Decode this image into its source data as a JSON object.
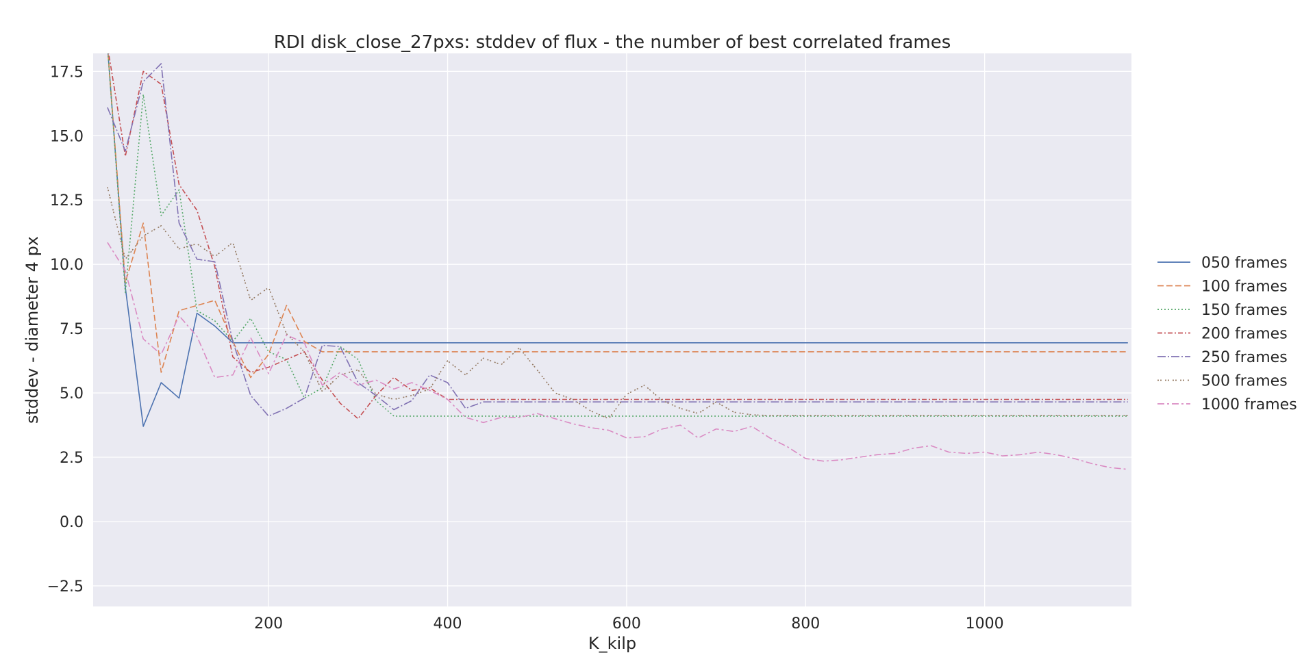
{
  "chart_data": {
    "type": "line",
    "title": "RDI disk_close_27pxs: stddev of flux - the number of best correlated frames",
    "xlabel": "K_kilp",
    "ylabel": "stddev - diameter 4 px",
    "xlim": [
      4,
      1164
    ],
    "ylim": [
      -3.3,
      18.2
    ],
    "xticks": [
      200,
      400,
      600,
      800,
      1000
    ],
    "yticks": [
      -2.5,
      0.0,
      2.5,
      5.0,
      7.5,
      10.0,
      12.5,
      15.0,
      17.5
    ],
    "grid": true,
    "legend_position": "right",
    "background": "#eaeaf2",
    "series": [
      {
        "name": "050 frames",
        "color": "#4c72b0",
        "dash": "",
        "x": [
          20,
          40,
          60,
          80,
          100,
          120,
          140,
          160,
          180,
          1160
        ],
        "y": [
          18.5,
          9.1,
          3.7,
          5.4,
          4.8,
          8.1,
          7.6,
          6.95,
          6.95,
          6.95
        ]
      },
      {
        "name": "100 frames",
        "color": "#dd8452",
        "dash": "9,4",
        "x": [
          20,
          40,
          60,
          80,
          100,
          120,
          140,
          160,
          180,
          200,
          220,
          240,
          260,
          280,
          1160
        ],
        "y": [
          18.5,
          9.3,
          11.6,
          5.8,
          8.2,
          8.4,
          8.6,
          7.0,
          5.6,
          6.5,
          8.4,
          7.0,
          6.6,
          6.6,
          6.6
        ]
      },
      {
        "name": "150 frames",
        "color": "#55a868",
        "dash": "2,3",
        "x": [
          20,
          40,
          60,
          80,
          100,
          120,
          140,
          160,
          180,
          200,
          220,
          240,
          260,
          280,
          300,
          320,
          340,
          1160
        ],
        "y": [
          18.5,
          8.9,
          16.6,
          11.9,
          12.9,
          8.2,
          7.8,
          7.0,
          7.9,
          6.6,
          6.3,
          4.8,
          5.2,
          6.8,
          6.3,
          4.7,
          4.1,
          4.1
        ]
      },
      {
        "name": "200 frames",
        "color": "#c44e52",
        "dash": "7,3,2,3",
        "x": [
          20,
          40,
          60,
          80,
          100,
          120,
          140,
          160,
          180,
          200,
          220,
          240,
          260,
          280,
          300,
          320,
          340,
          360,
          380,
          400,
          1160
        ],
        "y": [
          18.5,
          14.2,
          17.5,
          17.0,
          13.1,
          12.1,
          9.9,
          6.4,
          5.8,
          6.0,
          6.3,
          6.6,
          5.5,
          4.6,
          4.0,
          4.9,
          5.6,
          5.1,
          5.2,
          4.75,
          4.75
        ]
      },
      {
        "name": "250 frames",
        "color": "#8172b3",
        "dash": "12,3,2,3",
        "x": [
          20,
          40,
          60,
          80,
          100,
          120,
          140,
          160,
          180,
          200,
          220,
          240,
          260,
          280,
          300,
          320,
          340,
          360,
          380,
          400,
          420,
          440,
          1160
        ],
        "y": [
          16.1,
          14.4,
          17.1,
          17.8,
          11.6,
          10.2,
          10.1,
          7.0,
          4.9,
          4.1,
          4.4,
          4.8,
          6.85,
          6.8,
          5.4,
          4.9,
          4.35,
          4.7,
          5.7,
          5.4,
          4.4,
          4.65,
          4.65
        ]
      },
      {
        "name": "500 frames",
        "color": "#937860",
        "dash": "2,2,2,5",
        "x": [
          20,
          40,
          60,
          80,
          100,
          120,
          140,
          160,
          180,
          200,
          220,
          240,
          260,
          280,
          300,
          320,
          340,
          360,
          380,
          400,
          420,
          440,
          460,
          480,
          500,
          520,
          540,
          560,
          580,
          600,
          620,
          640,
          660,
          680,
          700,
          720,
          740,
          760,
          1160
        ],
        "y": [
          13.0,
          10.2,
          11.1,
          11.5,
          10.6,
          10.8,
          10.3,
          10.85,
          8.6,
          9.1,
          7.3,
          6.6,
          5.05,
          5.7,
          5.9,
          4.95,
          4.75,
          4.9,
          5.15,
          6.25,
          5.7,
          6.35,
          6.1,
          6.75,
          5.9,
          5.0,
          4.75,
          4.3,
          4.0,
          4.95,
          5.3,
          4.7,
          4.4,
          4.2,
          4.65,
          4.25,
          4.15,
          4.12,
          4.12
        ]
      },
      {
        "name": "1000 frames",
        "color": "#da8bc3",
        "dash": "10,4,3,4",
        "x": [
          20,
          40,
          60,
          80,
          100,
          120,
          140,
          160,
          180,
          200,
          220,
          240,
          260,
          280,
          300,
          320,
          340,
          360,
          380,
          400,
          420,
          440,
          460,
          480,
          500,
          520,
          540,
          560,
          580,
          600,
          620,
          640,
          660,
          680,
          700,
          720,
          740,
          760,
          780,
          800,
          820,
          840,
          860,
          880,
          900,
          920,
          940,
          960,
          980,
          1000,
          1020,
          1040,
          1060,
          1080,
          1100,
          1120,
          1140,
          1160
        ],
        "y": [
          10.85,
          9.75,
          7.1,
          6.5,
          8.0,
          7.2,
          5.6,
          5.7,
          7.15,
          5.75,
          7.25,
          6.95,
          5.3,
          5.8,
          5.3,
          5.5,
          5.15,
          5.4,
          5.1,
          4.75,
          4.05,
          3.85,
          4.05,
          4.05,
          4.2,
          4.0,
          3.8,
          3.65,
          3.55,
          3.25,
          3.3,
          3.6,
          3.75,
          3.25,
          3.6,
          3.5,
          3.7,
          3.25,
          2.9,
          2.45,
          2.35,
          2.4,
          2.5,
          2.6,
          2.65,
          2.85,
          2.95,
          2.7,
          2.65,
          2.7,
          2.55,
          2.6,
          2.7,
          2.6,
          2.45,
          2.25,
          2.1,
          2.03
        ]
      }
    ]
  }
}
